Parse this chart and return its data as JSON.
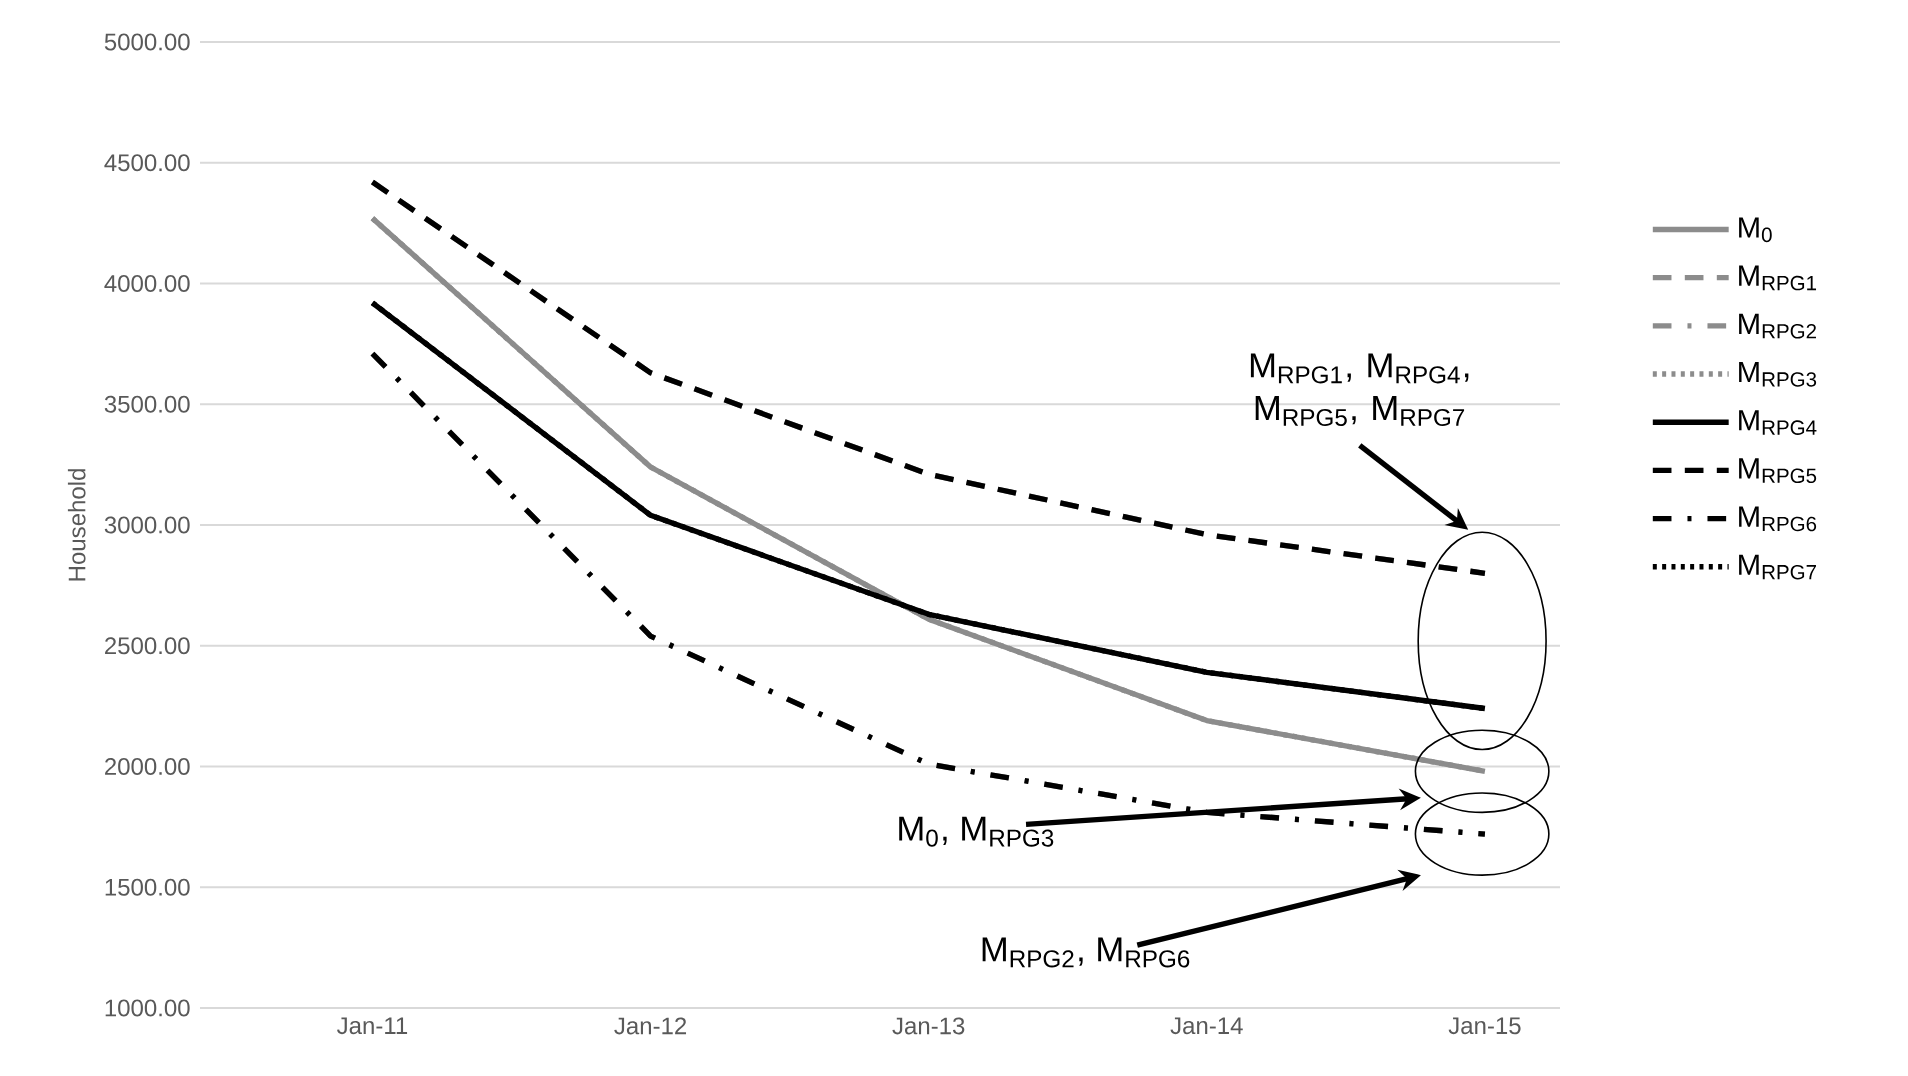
{
  "chart_data": {
    "type": "line",
    "ylabel": "Household",
    "categories": [
      "Jan-11",
      "Jan-12",
      "Jan-13",
      "Jan-14",
      "Jan-15"
    ],
    "ylim": [
      1000,
      5000
    ],
    "yticks": [
      {
        "value": 1000,
        "label": "1000.00"
      },
      {
        "value": 1500,
        "label": "1500.00"
      },
      {
        "value": 2000,
        "label": "2000.00"
      },
      {
        "value": 2500,
        "label": "2500.00"
      },
      {
        "value": 3000,
        "label": "3000.00"
      },
      {
        "value": 3500,
        "label": "3500.00"
      },
      {
        "value": 4000,
        "label": "4000.00"
      },
      {
        "value": 4500,
        "label": "4500.00"
      },
      {
        "value": 5000,
        "label": "5000.00"
      }
    ],
    "grid": "y",
    "legend": "right",
    "series": [
      {
        "name": "M$_{0}$",
        "color": "#8c8c8c",
        "line_style": "solid",
        "values": [
          4270,
          3240,
          2610,
          2190,
          1980
        ]
      },
      {
        "name": "M$_{RPG1}$",
        "color": "#8c8c8c",
        "line_style": "dashed",
        "values": [
          4420,
          3630,
          3210,
          2960,
          2800
        ]
      },
      {
        "name": "M$_{RPG2}$",
        "color": "#8c8c8c",
        "line_style": "dashdot",
        "values": [
          3710,
          2540,
          2010,
          1810,
          1720
        ]
      },
      {
        "name": "M$_{RPG3}$",
        "color": "#8c8c8c",
        "line_style": "dotted",
        "values": [
          4270,
          3240,
          2610,
          2190,
          1980
        ]
      },
      {
        "name": "M$_{RPG4}$",
        "color": "#000000",
        "line_style": "solid",
        "values": [
          3920,
          3040,
          2630,
          2390,
          2240
        ]
      },
      {
        "name": "M$_{RPG5}$",
        "color": "#000000",
        "line_style": "dashed",
        "values": [
          4420,
          3630,
          3210,
          2960,
          2800
        ]
      },
      {
        "name": "M$_{RPG6}$",
        "color": "#000000",
        "line_style": "dashdot",
        "values": [
          3710,
          2540,
          2010,
          1810,
          1720
        ]
      },
      {
        "name": "M$_{RPG7}$",
        "color": "#000000",
        "line_style": "dotted",
        "values": [
          3920,
          3040,
          2630,
          2390,
          2240
        ]
      }
    ],
    "annotations": [
      "M$_{RPG1}$, M$_{RPG4}$, M$_{RPG5}$, M$_{RPG7}$",
      "M$_{0}$, M$_{RPG3}$",
      "M$_{RPG2}$, M$_{RPG6}$"
    ]
  }
}
